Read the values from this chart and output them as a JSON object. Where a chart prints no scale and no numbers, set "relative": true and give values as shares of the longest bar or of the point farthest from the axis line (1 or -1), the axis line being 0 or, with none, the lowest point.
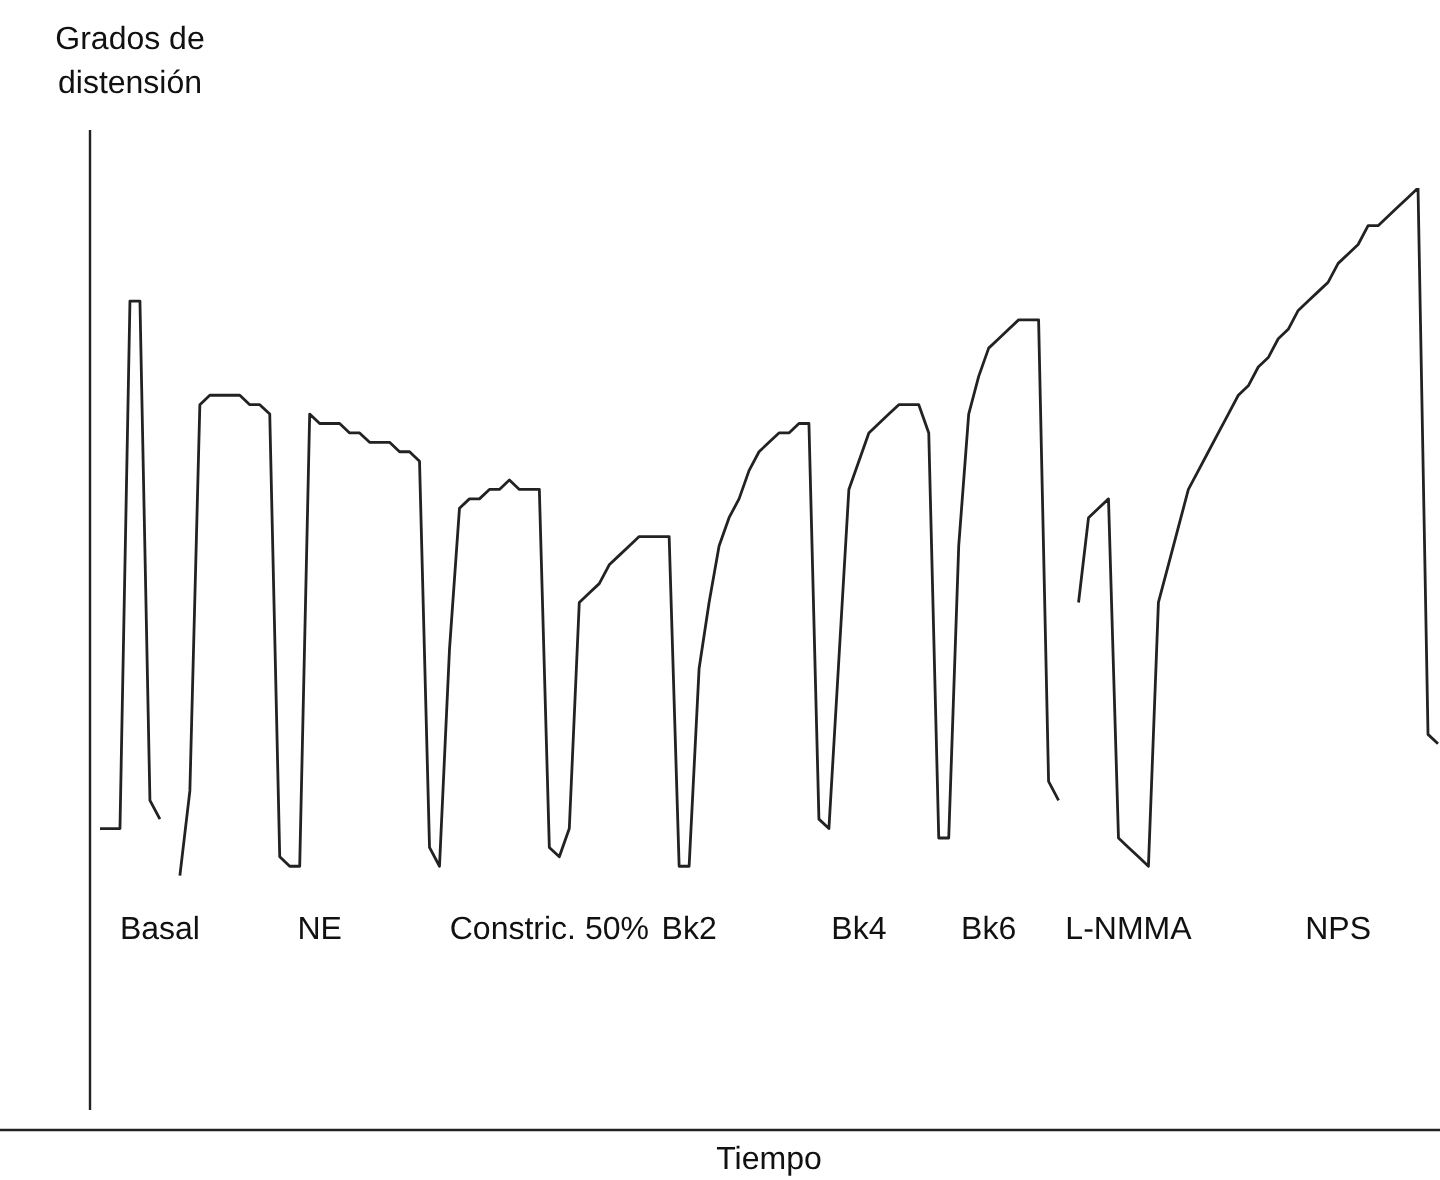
{
  "chart_data": {
    "type": "line",
    "relative": true,
    "xlabel": "Tiempo",
    "ylabel": "Grados de distensión",
    "color": "#222222",
    "marker": "none",
    "tick_labels": "x",
    "categories": [
      null,
      null,
      null,
      null,
      null,
      null,
      "Basal",
      null,
      null,
      null,
      null,
      null,
      null,
      null,
      null,
      null,
      null,
      null,
      null,
      null,
      null,
      null,
      "NE",
      null,
      null,
      null,
      null,
      null,
      null,
      null,
      null,
      null,
      null,
      null,
      null,
      null,
      null,
      null,
      null,
      null,
      null,
      null,
      null,
      null,
      null,
      "Constric. 50%",
      null,
      null,
      null,
      null,
      null,
      null,
      null,
      null,
      null,
      null,
      null,
      null,
      null,
      "Bk2",
      null,
      null,
      null,
      null,
      null,
      null,
      null,
      null,
      null,
      null,
      null,
      null,
      null,
      null,
      null,
      null,
      "Bk4",
      null,
      null,
      null,
      null,
      null,
      null,
      null,
      null,
      null,
      null,
      null,
      null,
      "Bk6",
      null,
      null,
      null,
      null,
      null,
      null,
      null,
      null,
      null,
      null,
      null,
      null,
      null,
      "L-NMMA",
      null,
      null,
      null,
      null,
      null,
      null,
      null,
      null,
      null,
      null,
      null,
      null,
      null,
      null,
      null,
      null,
      null,
      null,
      null,
      null,
      "NPS",
      null,
      null,
      null,
      null,
      null,
      null,
      null,
      null,
      null,
      null
    ],
    "values": [
      0.32,
      0.32,
      0.32,
      0.88,
      0.88,
      0.35,
      0.33,
      null,
      0.27,
      0.36,
      0.77,
      0.78,
      0.78,
      0.78,
      0.78,
      0.77,
      0.77,
      0.76,
      0.29,
      0.28,
      0.28,
      0.76,
      0.75,
      0.75,
      0.75,
      0.74,
      0.74,
      0.73,
      0.73,
      0.73,
      0.72,
      0.72,
      0.71,
      0.3,
      0.28,
      0.51,
      0.66,
      0.67,
      0.67,
      0.68,
      0.68,
      0.69,
      0.68,
      0.68,
      0.68,
      0.3,
      0.29,
      0.32,
      0.56,
      0.57,
      0.58,
      0.6,
      0.61,
      0.62,
      0.63,
      0.63,
      0.63,
      0.63,
      0.28,
      0.28,
      0.49,
      0.56,
      0.62,
      0.65,
      0.67,
      0.7,
      0.72,
      0.73,
      0.74,
      0.74,
      0.75,
      0.75,
      0.33,
      0.32,
      0.5,
      0.68,
      0.71,
      0.74,
      0.75,
      0.76,
      0.77,
      0.77,
      0.77,
      0.74,
      0.31,
      0.31,
      0.62,
      0.76,
      0.8,
      0.83,
      0.84,
      0.85,
      0.86,
      0.86,
      0.86,
      0.37,
      0.35,
      null,
      0.56,
      0.65,
      0.66,
      0.67,
      0.31,
      0.3,
      0.29,
      0.28,
      0.56,
      0.6,
      0.64,
      0.68,
      0.7,
      0.72,
      0.74,
      0.76,
      0.78,
      0.79,
      0.81,
      0.82,
      0.84,
      0.85,
      0.87,
      0.88,
      0.89,
      0.9,
      0.92,
      0.93,
      0.94,
      0.96,
      0.96,
      0.97,
      0.98,
      0.99,
      1,
      0.42,
      0.41
    ]
  }
}
